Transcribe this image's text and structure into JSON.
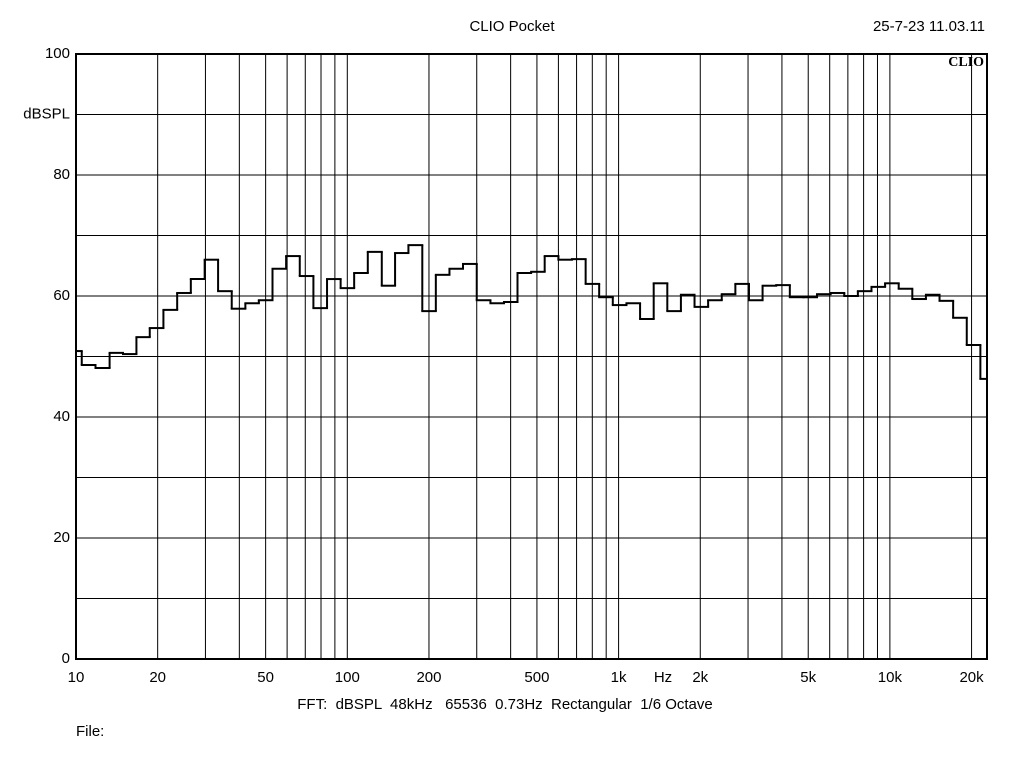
{
  "chart_data": {
    "type": "step",
    "title": "CLIO Pocket",
    "timestamp": "25-7-23 11.03.11",
    "logo": "CLIO",
    "ylabel": "dBSPL",
    "xlabel": "Hz",
    "footer": "FFT:  dBSPL  48kHz   65536  0.73Hz  Rectangular  1/6 Octave",
    "file_label": "File:",
    "xscale": "log",
    "xlim": [
      10,
      22800
    ],
    "ylim": [
      0,
      100
    ],
    "xticks": [
      10,
      20,
      50,
      100,
      200,
      500,
      {
        "value": 1000,
        "label": "1k"
      },
      {
        "value": 2000,
        "label": "2k"
      },
      {
        "value": 5000,
        "label": "5k"
      },
      {
        "value": 10000,
        "label": "10k"
      },
      {
        "value": 20000,
        "label": "20k"
      }
    ],
    "xgrid": [
      30,
      40,
      60,
      70,
      80,
      90,
      300,
      400,
      600,
      700,
      800,
      900,
      3000,
      4000,
      6000,
      7000,
      8000,
      9000
    ],
    "yticks": [
      0,
      20,
      40,
      60,
      80,
      100
    ],
    "ygrid": [
      10,
      30,
      50,
      70,
      90
    ],
    "grid": true,
    "series": [
      {
        "color": "#000000",
        "x": [
          10,
          10.5,
          11.8,
          13.3,
          14.9,
          16.7,
          18.7,
          21.0,
          23.6,
          26.5,
          29.8,
          33.4,
          37.5,
          42.1,
          47.2,
          53.0,
          59.5,
          66.8,
          75.0,
          84.2,
          94.5,
          106,
          119,
          134,
          150,
          168,
          189,
          212,
          238,
          267,
          300,
          337,
          378,
          424,
          476,
          534,
          600,
          673,
          756,
          848,
          952,
          1069,
          1200,
          1347,
          1512,
          1697,
          1905,
          2138,
          2400,
          2694,
          3024,
          3394,
          3810,
          4277,
          4800,
          5388,
          6048,
          6789,
          7620,
          8553,
          9601,
          10776,
          12096,
          13577,
          15240,
          17106,
          19201,
          21553
        ],
        "values": [
          50.9,
          48.6,
          48.1,
          50.6,
          50.4,
          53.2,
          54.7,
          57.7,
          60.5,
          62.8,
          66.0,
          60.8,
          57.9,
          58.8,
          59.3,
          64.5,
          66.6,
          63.3,
          58.0,
          62.8,
          61.3,
          63.8,
          67.3,
          61.7,
          67.1,
          68.4,
          57.5,
          63.5,
          64.5,
          65.3,
          59.3,
          58.8,
          59.0,
          63.8,
          64.0,
          66.6,
          66.0,
          66.1,
          62.0,
          59.8,
          58.5,
          58.8,
          56.2,
          62.1,
          57.5,
          60.2,
          58.2,
          59.3,
          60.3,
          62.0,
          59.3,
          61.7,
          61.8,
          59.8,
          59.8,
          60.3,
          60.5,
          60.0,
          60.8,
          61.5,
          62.1,
          61.2,
          59.5,
          60.2,
          59.2,
          56.4,
          51.9,
          46.3
        ]
      }
    ]
  }
}
